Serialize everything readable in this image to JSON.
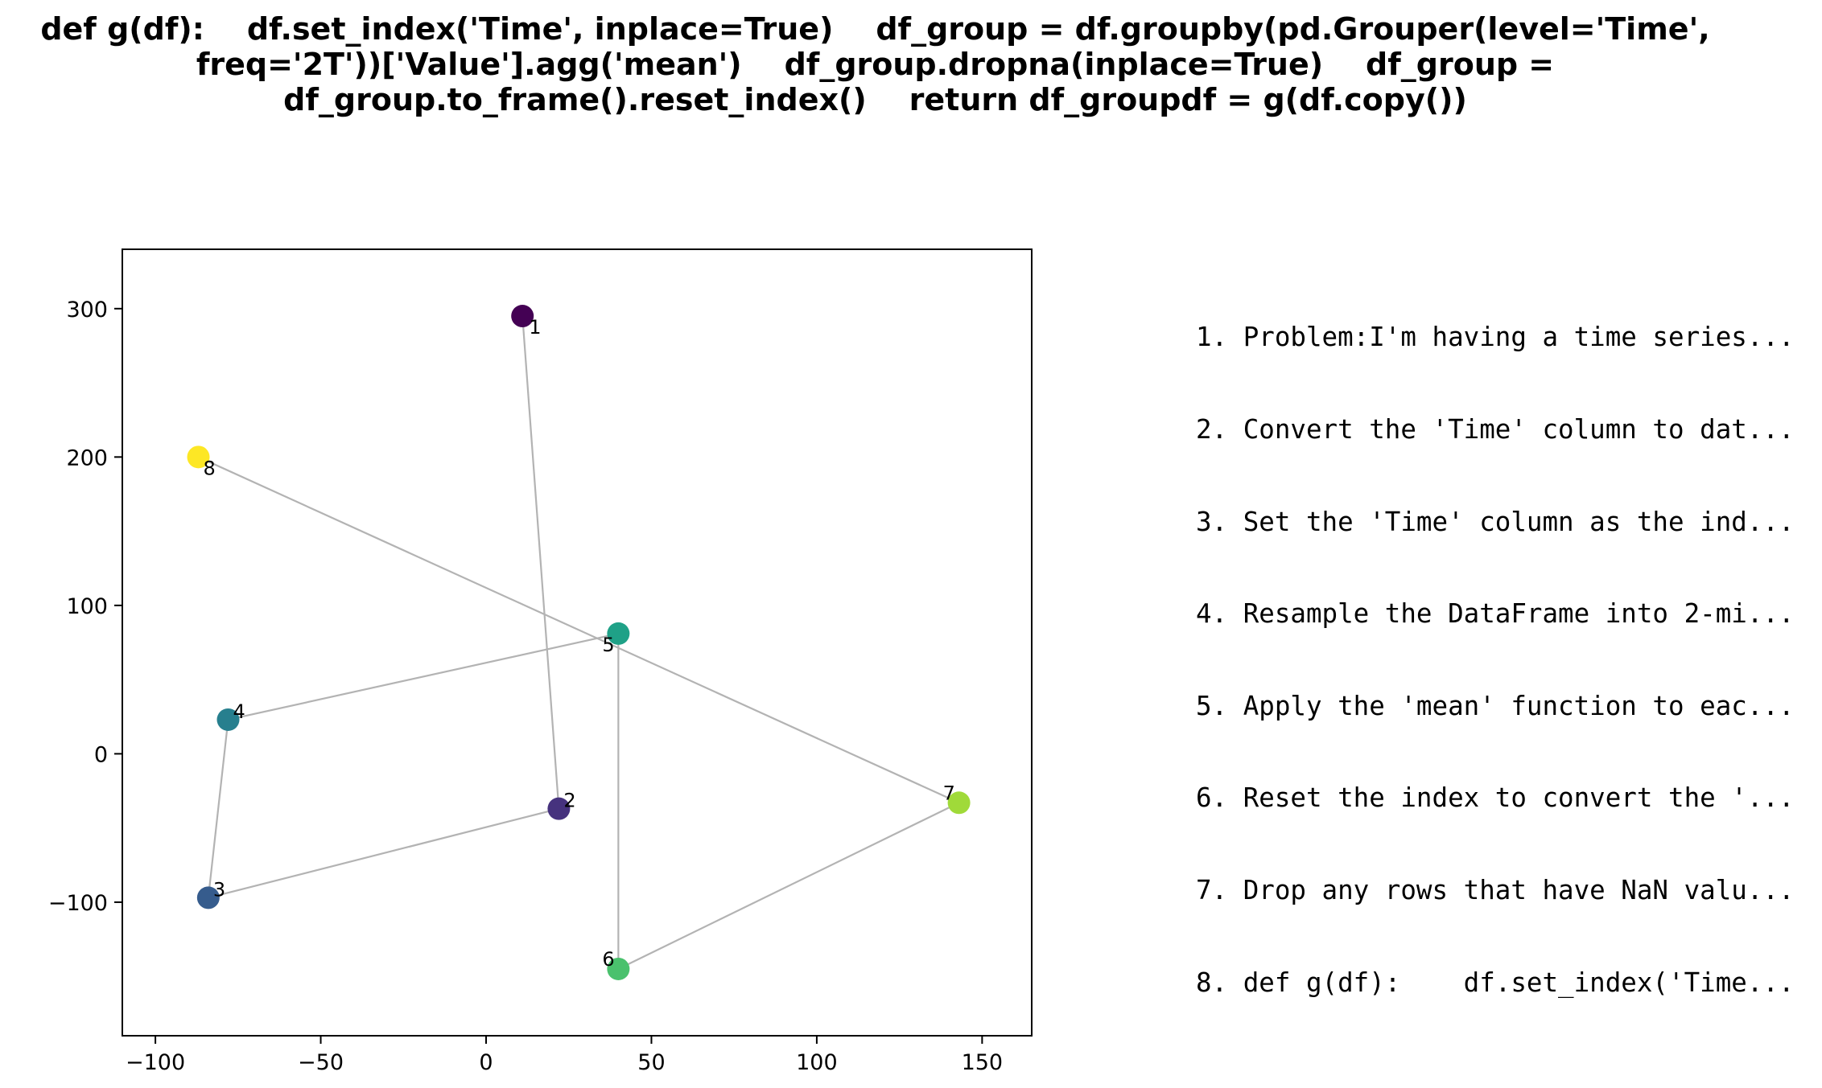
{
  "title_lines": [
    "def g(df):    df.set_index('Time', inplace=True)    df_group = df.groupby(pd.Grouper(level='Time',",
    "freq='2T'))['Value'].agg('mean')    df_group.dropna(inplace=True)    df_group =",
    "df_group.to_frame().reset_index()    return df_groupdf = g(df.copy())"
  ],
  "steps": [
    "1. Problem:I'm having a time series...",
    "2. Convert the 'Time' column to dat...",
    "3. Set the 'Time' column as the ind...",
    "4. Resample the DataFrame into 2-mi...",
    "5. Apply the 'mean' function to eac...",
    "6. Reset the index to convert the '...",
    "7. Drop any rows that have NaN valu...",
    "8. def g(df):    df.set_index('Time..."
  ],
  "chart_data": {
    "type": "scatter",
    "title": "",
    "xlabel": "",
    "ylabel": "",
    "xlim": [
      -110,
      165
    ],
    "ylim": [
      -190,
      340
    ],
    "xticks": [
      -100,
      -50,
      0,
      50,
      100,
      150
    ],
    "xtick_labels": [
      "−100",
      "−50",
      "0",
      "50",
      "100",
      "150"
    ],
    "yticks": [
      -100,
      0,
      100,
      200,
      300
    ],
    "ytick_labels": [
      "−100",
      "0",
      "100",
      "200",
      "300"
    ],
    "grid": false,
    "connect_points_in_order": true,
    "line_color": "#b3b3b3",
    "colormap": "viridis",
    "points": [
      {
        "label": "1",
        "x": 11,
        "y": 295,
        "color": "#440154"
      },
      {
        "label": "2",
        "x": 22,
        "y": -37,
        "color": "#46327e"
      },
      {
        "label": "3",
        "x": -84,
        "y": -97,
        "color": "#365c8d"
      },
      {
        "label": "4",
        "x": -78,
        "y": 23,
        "color": "#277f8e"
      },
      {
        "label": "5",
        "x": 40,
        "y": 81,
        "color": "#1fa187"
      },
      {
        "label": "6",
        "x": 40,
        "y": -145,
        "color": "#4ac16d"
      },
      {
        "label": "7",
        "x": 143,
        "y": -33,
        "color": "#a0da39"
      },
      {
        "label": "8",
        "x": -87,
        "y": 200,
        "color": "#fde725"
      }
    ]
  }
}
